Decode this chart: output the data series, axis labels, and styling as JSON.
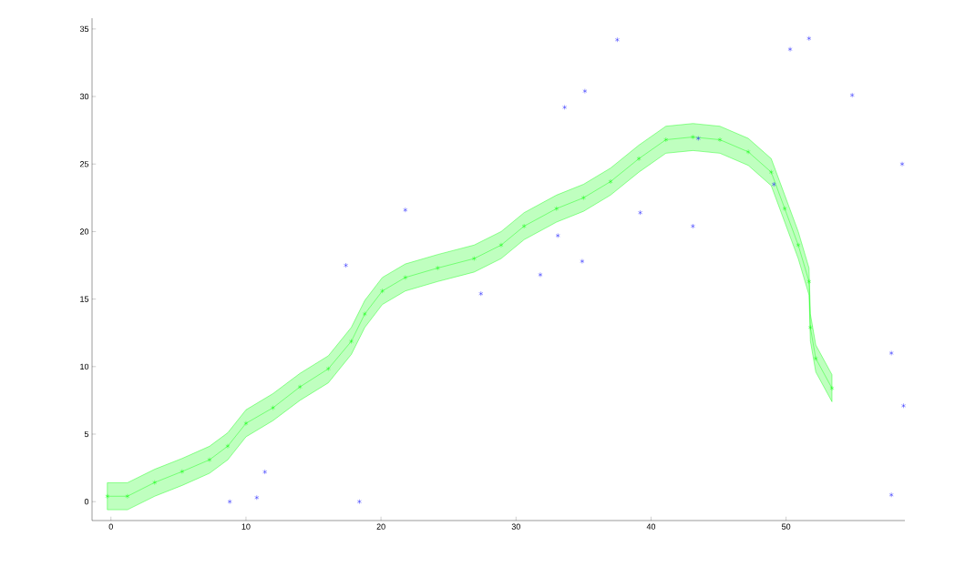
{
  "chart_data": {
    "type": "scatter",
    "xlim": [
      -1.4,
      58.8
    ],
    "ylim": [
      -1.4,
      35.8
    ],
    "xticks": [
      0,
      10,
      20,
      30,
      40,
      50
    ],
    "yticks": [
      0,
      5,
      10,
      15,
      20,
      25,
      30,
      35
    ],
    "grid": false,
    "marker": "cross",
    "series": [
      {
        "type": "line",
        "color": "#00ff00",
        "line_style": "solid",
        "x": [
          -0.27,
          1.22,
          3.24,
          5.27,
          7.3,
          8.65,
          10.0,
          12.0,
          14.0,
          16.1,
          17.8,
          18.8,
          20.1,
          21.8,
          24.2,
          26.9,
          28.9,
          30.6,
          33.0,
          35.0,
          37.0,
          39.1,
          41.1,
          43.1,
          45.1,
          47.2,
          48.9,
          49.9,
          50.9,
          51.7,
          51.8,
          52.2,
          53.4
        ],
        "values": [
          0.4,
          0.4,
          1.42,
          2.23,
          3.1,
          4.11,
          5.8,
          6.95,
          8.5,
          9.84,
          11.87,
          13.9,
          15.6,
          16.6,
          17.3,
          18.0,
          19.0,
          20.4,
          21.7,
          22.5,
          23.7,
          25.4,
          26.8,
          27.0,
          26.8,
          25.9,
          24.4,
          21.7,
          19.0,
          16.3,
          12.9,
          10.6,
          8.4
        ],
        "lower": [
          -0.6,
          -0.6,
          0.4,
          1.2,
          2.1,
          3.1,
          4.8,
          6.0,
          7.5,
          8.8,
          10.9,
          12.9,
          14.6,
          15.6,
          16.3,
          17.0,
          18.0,
          19.4,
          20.7,
          21.5,
          22.7,
          24.4,
          25.8,
          26.0,
          25.8,
          24.9,
          23.4,
          20.7,
          18.0,
          15.3,
          11.9,
          9.6,
          7.4
        ],
        "upper": [
          1.4,
          1.4,
          2.4,
          3.2,
          4.1,
          5.1,
          6.8,
          8.0,
          9.5,
          10.8,
          12.9,
          14.9,
          16.6,
          17.6,
          18.3,
          19.0,
          20.0,
          21.4,
          22.7,
          23.5,
          24.7,
          26.4,
          27.8,
          28.0,
          27.8,
          26.9,
          25.4,
          22.7,
          20.0,
          17.3,
          13.9,
          11.6,
          9.4
        ]
      },
      {
        "type": "scatter",
        "color": "#0000ff",
        "x": [
          8.8,
          10.8,
          11.4,
          18.4,
          17.4,
          21.8,
          27.4,
          31.8,
          33.1,
          34.9,
          33.6,
          35.1,
          37.5,
          39.2,
          43.1,
          43.5,
          49.1,
          50.3,
          51.7,
          54.9,
          58.6,
          57.8,
          58.7,
          57.8
        ],
        "values": [
          0,
          0.3,
          2.2,
          0,
          17.5,
          21.6,
          15.4,
          16.8,
          19.7,
          17.8,
          29.2,
          30.4,
          34.2,
          21.4,
          20.4,
          26.9,
          23.5,
          33.5,
          34.3,
          30.1,
          25.0,
          11.0,
          7.1,
          0.5
        ],
        "marker": "cross"
      }
    ]
  }
}
